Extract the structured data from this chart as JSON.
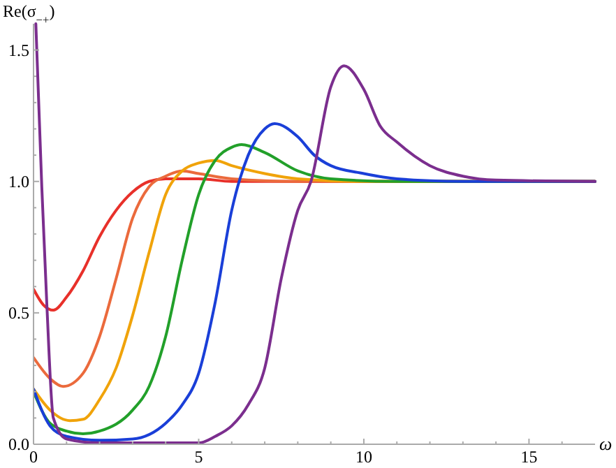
{
  "chart_data": {
    "type": "line",
    "xlabel": "ω",
    "ylabel": "Re(σ$_{−+}$)",
    "xlim": [
      0,
      17
    ],
    "ylim": [
      0,
      1.6
    ],
    "xticks": [
      0,
      {
        "value": 1,
        "label": null
      },
      {
        "value": 2,
        "label": null
      },
      {
        "value": 3,
        "label": null
      },
      {
        "value": 4,
        "label": null
      },
      5,
      {
        "value": 6,
        "label": null
      },
      {
        "value": 7,
        "label": null
      },
      {
        "value": 8,
        "label": null
      },
      {
        "value": 9,
        "label": null
      },
      10,
      {
        "value": 11,
        "label": null
      },
      {
        "value": 12,
        "label": null
      },
      {
        "value": 13,
        "label": null
      },
      {
        "value": 14,
        "label": null
      },
      15,
      {
        "value": 16,
        "label": null
      }
    ],
    "yticks": [
      {
        "value": 0,
        "label": "0.0"
      },
      {
        "value": 0.1,
        "label": null
      },
      {
        "value": 0.2,
        "label": null
      },
      {
        "value": 0.3,
        "label": null
      },
      {
        "value": 0.4,
        "label": null
      },
      {
        "value": 0.5,
        "label": "0.5"
      },
      {
        "value": 0.6,
        "label": null
      },
      {
        "value": 0.7,
        "label": null
      },
      {
        "value": 0.8,
        "label": null
      },
      {
        "value": 0.9,
        "label": null
      },
      {
        "value": 1,
        "label": "1.0"
      },
      {
        "value": 1.1,
        "label": null
      },
      {
        "value": 1.2,
        "label": null
      },
      {
        "value": 1.3,
        "label": null
      },
      {
        "value": 1.4,
        "label": null
      },
      {
        "value": 1.5,
        "label": "1.5"
      }
    ],
    "grid": false,
    "marker": "none",
    "line_style": "solid",
    "series": [
      {
        "color": "#e8302a",
        "x": [
          0,
          0.3,
          0.6,
          1,
          1.5,
          2,
          2.5,
          3,
          3.5,
          4,
          5,
          6,
          8,
          17
        ],
        "values": [
          0.59,
          0.53,
          0.51,
          0.56,
          0.66,
          0.79,
          0.89,
          0.96,
          1.0,
          1.01,
          1.01,
          1.0,
          1.0,
          1.0
        ]
      },
      {
        "color": "#eb6a3c",
        "x": [
          0,
          0.5,
          0.9,
          1.5,
          2,
          2.5,
          3,
          3.5,
          4,
          4.5,
          5,
          6,
          8,
          17
        ],
        "values": [
          0.33,
          0.25,
          0.22,
          0.27,
          0.41,
          0.63,
          0.86,
          0.98,
          1.02,
          1.04,
          1.03,
          1.01,
          1.0,
          1.0
        ]
      },
      {
        "color": "#f0a30a",
        "x": [
          0,
          0.5,
          1.1,
          1.5,
          2,
          2.5,
          3,
          3.5,
          4,
          4.5,
          5,
          5.5,
          6,
          7,
          8,
          10,
          17
        ],
        "values": [
          0.21,
          0.13,
          0.09,
          0.095,
          0.17,
          0.29,
          0.49,
          0.73,
          0.95,
          1.04,
          1.07,
          1.08,
          1.06,
          1.03,
          1.01,
          1.0,
          1.0
        ]
      },
      {
        "color": "#22a02a",
        "x": [
          0,
          0.5,
          1,
          1.5,
          2,
          3,
          3.5,
          4,
          4.5,
          5,
          5.5,
          6,
          6.3,
          7,
          8,
          9,
          11,
          17
        ],
        "values": [
          0.2,
          0.08,
          0.05,
          0.04,
          0.05,
          0.13,
          0.22,
          0.41,
          0.7,
          0.95,
          1.08,
          1.13,
          1.14,
          1.11,
          1.04,
          1.01,
          1.0,
          1.0
        ]
      },
      {
        "color": "#1a3fd8",
        "x": [
          0,
          0.5,
          1,
          2,
          3,
          4,
          4.5,
          5,
          5.5,
          6,
          6.5,
          7,
          7.3,
          8,
          8.5,
          9,
          10,
          11,
          13,
          17
        ],
        "values": [
          0.21,
          0.07,
          0.03,
          0.015,
          0.02,
          0.08,
          0.15,
          0.27,
          0.54,
          0.89,
          1.1,
          1.2,
          1.22,
          1.17,
          1.1,
          1.06,
          1.03,
          1.01,
          1.0,
          1.0
        ]
      },
      {
        "color": "#7b2e8e",
        "x": [
          0.07,
          0.25,
          0.4,
          0.6,
          1,
          2,
          5,
          5.5,
          6,
          6.5,
          7,
          7.5,
          8,
          8.4,
          9,
          9.4,
          10,
          10.5,
          11,
          12,
          13,
          14,
          17
        ],
        "values": [
          1.6,
          0.98,
          0.54,
          0.1,
          0.02,
          0.005,
          0.005,
          0.03,
          0.07,
          0.15,
          0.29,
          0.63,
          0.89,
          1.0,
          1.36,
          1.44,
          1.35,
          1.21,
          1.15,
          1.06,
          1.02,
          1.005,
          1.0
        ]
      }
    ]
  }
}
